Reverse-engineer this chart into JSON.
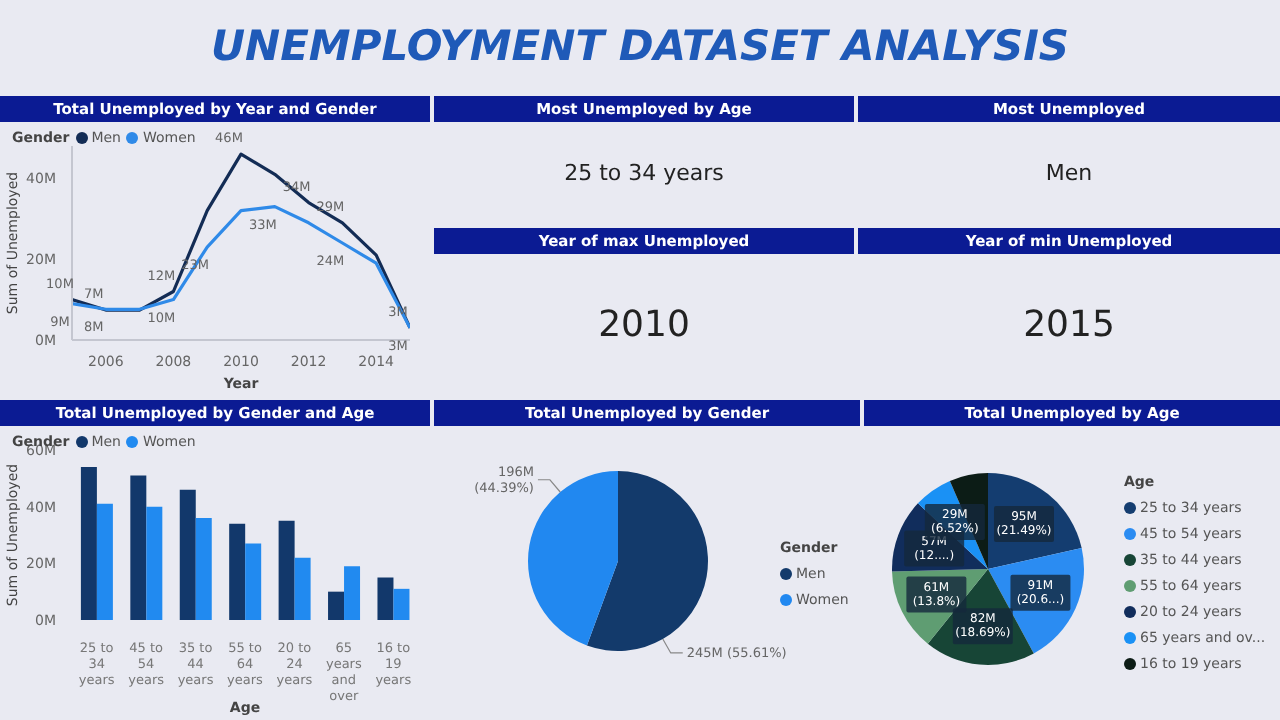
{
  "chart_data": [
    {
      "type": "other",
      "title": "UNEMPLOYMENT DATASET ANALYSIS"
    },
    {
      "type": "line",
      "title": "Total Unemployed by Year and Gender",
      "xlabel": "Year",
      "ylabel": "Sum of Unemployed",
      "legend_title": "Gender",
      "legend": "top left",
      "x": [
        2005,
        2006,
        2007,
        2008,
        2009,
        2010,
        2011,
        2012,
        2013,
        2014,
        2015
      ],
      "xlim": [
        2005,
        2015
      ],
      "xticks": [
        2006,
        2008,
        2010,
        2012,
        2014
      ],
      "ylim": [
        0,
        48
      ],
      "yticks": [
        {
          "value": 0,
          "label": "0M"
        },
        {
          "value": 20,
          "label": "20M"
        },
        {
          "value": 40,
          "label": "40M"
        }
      ],
      "series": [
        {
          "name": "Men",
          "color": "#132c55",
          "values": [
            10,
            7.4,
            7.4,
            12,
            32,
            46,
            41,
            34,
            29,
            21,
            3
          ],
          "value_labels": [
            "10M",
            "7M",
            null,
            "12M",
            null,
            "46M",
            null,
            "34M",
            "29M",
            null,
            "3M"
          ]
        },
        {
          "name": "Women",
          "color": "#2f8ae8",
          "values": [
            9,
            7.6,
            7.6,
            10,
            23,
            32,
            33,
            29,
            24,
            19,
            3
          ],
          "value_labels": [
            "9M",
            "8M",
            null,
            "10M",
            "23M",
            null,
            "33M",
            null,
            "24M",
            null,
            "3M"
          ]
        }
      ]
    },
    {
      "type": "other",
      "title": "Most Unemployed by Age",
      "annotations": [
        "25 to 34 years"
      ]
    },
    {
      "type": "other",
      "title": "Most Unemployed",
      "annotations": [
        "Men"
      ]
    },
    {
      "type": "other",
      "title": "Year of max Unemployed",
      "annotations": [
        "2010"
      ]
    },
    {
      "type": "other",
      "title": "Year of min Unemployed",
      "annotations": [
        "2015"
      ]
    },
    {
      "type": "bar",
      "title": "Total Unemployed by Gender and Age",
      "xlabel": "Age",
      "ylabel": "Sum of Unemployed",
      "legend_title": "Gender",
      "legend": "top left",
      "categories": [
        "25 to 34 years",
        "45 to 54 years",
        "35 to 44 years",
        "55 to 64 years",
        "20 to 24 years",
        "65 years and over",
        "16 to 19 years"
      ],
      "ylim": [
        0,
        60
      ],
      "yticks": [
        {
          "value": 0,
          "label": "0M"
        },
        {
          "value": 20,
          "label": "20M"
        },
        {
          "value": 40,
          "label": "40M"
        },
        {
          "value": 60,
          "label": "60M"
        }
      ],
      "series": [
        {
          "name": "Men",
          "color": "#12386b",
          "values": [
            54,
            51,
            46,
            34,
            35,
            10,
            15
          ]
        },
        {
          "name": "Women",
          "color": "#218af0",
          "values": [
            41,
            40,
            36,
            27,
            22,
            19,
            11
          ]
        }
      ]
    },
    {
      "type": "pie",
      "title": "Total Unemployed by Gender",
      "legend_title": "Gender",
      "legend": "right",
      "categories": [
        "Men",
        "Women"
      ],
      "values": [
        55.61,
        44.39
      ],
      "colors": [
        "#133a6b",
        "#2188f0"
      ],
      "value_labels": [
        "245M (55.61%)",
        "196M (44.39%)"
      ]
    },
    {
      "type": "pie",
      "title": "Total Unemployed by Age",
      "legend_title": "Age",
      "legend": "right",
      "categories": [
        "25 to 34 years",
        "45 to 54 years",
        "35 to 44 years",
        "55 to 64 years",
        "20 to 24 years",
        "65 years and ov...",
        "16 to 19 years"
      ],
      "values": [
        21.49,
        20.6,
        18.69,
        13.8,
        12.4,
        6.52,
        6.5
      ],
      "colors": [
        "#143d70",
        "#2b8cf2",
        "#174536",
        "#5f9d72",
        "#112d5c",
        "#1a91f5",
        "#0c1c16"
      ],
      "value_labels": [
        "95M (21.49%)",
        "91M (20.6...)",
        "82M (18.69%)",
        "61M (13.8%)",
        "57M (12....)",
        "29M (6.52%)",
        null
      ]
    }
  ]
}
